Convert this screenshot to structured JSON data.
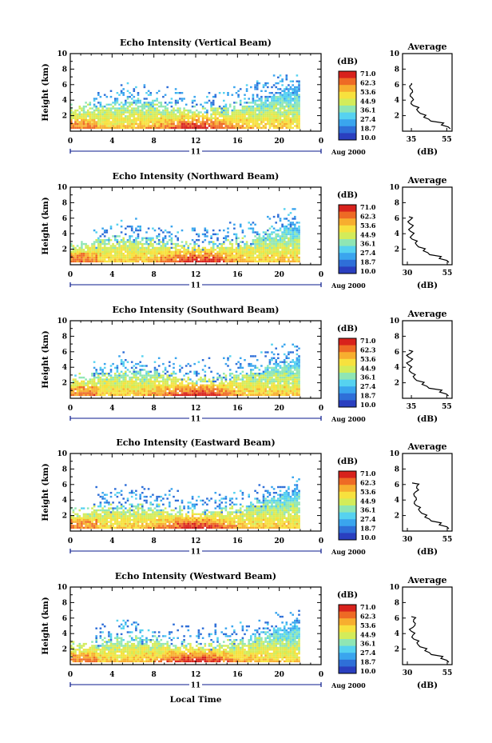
{
  "figure": {
    "bottom_xlabel": "Local Time",
    "date_label": "Aug 2000",
    "day_label": "11",
    "colorbar_unit": "(dB)",
    "colorbar_ticks": [
      "71.0",
      "62.3",
      "53.6",
      "44.9",
      "36.1",
      "27.4",
      "18.7",
      "10.0"
    ],
    "profile_title": "Average",
    "profile_xlabel": "(dB)",
    "colors": {
      "colormap": [
        "#2a3fbf",
        "#2f6fd8",
        "#3aa5ee",
        "#56d2f0",
        "#8fe6b4",
        "#d3ec5a",
        "#f7e13e",
        "#f7ae2f",
        "#ee6a25",
        "#d8221c"
      ],
      "frame": "#000000",
      "axis_tick_color": "#0a1a8c"
    }
  },
  "chart_data": [
    {
      "type": "heatmap",
      "title": "Echo Intensity (Vertical Beam)",
      "ylabel": "Height (km)",
      "xlim": [
        0,
        24
      ],
      "ylim": [
        0,
        10
      ],
      "xticks": [
        "0",
        "4",
        "8",
        "12",
        "16",
        "20",
        "0"
      ],
      "yticks": [
        "2",
        "4",
        "6",
        "8",
        "10"
      ],
      "clim": [
        10.0,
        71.0
      ],
      "data_end_hour": 21.8,
      "profile": {
        "xticks": [
          "35",
          "55"
        ],
        "xlim": [
          30,
          58
        ],
        "ylim": [
          0,
          10
        ],
        "heights": [
          0.3,
          0.8,
          1.3,
          1.8,
          2.3,
          2.8,
          3.3,
          3.8,
          4.3,
          4.8,
          5.3,
          5.8,
          6.2
        ],
        "values": [
          57,
          52,
          46,
          42,
          40,
          38,
          36,
          35,
          35.5,
          34.5,
          35.5,
          34,
          35
        ]
      }
    },
    {
      "type": "heatmap",
      "title": "Echo Intensity (Northward Beam)",
      "ylabel": "Height (km)",
      "xlim": [
        0,
        24
      ],
      "ylim": [
        0,
        10
      ],
      "xticks": [
        "0",
        "4",
        "8",
        "12",
        "16",
        "20",
        "0"
      ],
      "yticks": [
        "2",
        "4",
        "6",
        "8",
        "10"
      ],
      "clim": [
        10.0,
        71.0
      ],
      "data_end_hour": 21.8,
      "profile": {
        "xticks": [
          "30",
          "55"
        ],
        "xlim": [
          27,
          58
        ],
        "ylim": [
          0,
          10
        ],
        "heights": [
          0.3,
          0.8,
          1.3,
          1.8,
          2.3,
          2.8,
          3.3,
          3.8,
          4.3,
          4.8,
          5.3,
          5.8,
          6.2
        ],
        "values": [
          56,
          50,
          44,
          40,
          37,
          35,
          33,
          33,
          32,
          32.5,
          31.5,
          32,
          31
        ]
      }
    },
    {
      "type": "heatmap",
      "title": "Echo Intensity (Southward Beam)",
      "ylabel": "Height (km)",
      "xlim": [
        0,
        24
      ],
      "ylim": [
        0,
        10
      ],
      "xticks": [
        "0",
        "4",
        "8",
        "12",
        "16",
        "20",
        "0"
      ],
      "yticks": [
        "2",
        "4",
        "6",
        "8",
        "10"
      ],
      "clim": [
        10.0,
        71.0
      ],
      "data_end_hour": 21.8,
      "profile": {
        "xticks": [
          "35",
          "55"
        ],
        "xlim": [
          30,
          58
        ],
        "ylim": [
          0,
          10
        ],
        "heights": [
          0.3,
          0.8,
          1.3,
          1.8,
          2.3,
          2.8,
          3.3,
          3.8,
          4.3,
          4.8,
          5.3,
          5.8,
          6.2
        ],
        "values": [
          56,
          51,
          45,
          41,
          38,
          36,
          35,
          34,
          33.5,
          34.5,
          33.5,
          34.5,
          33.5
        ]
      }
    },
    {
      "type": "heatmap",
      "title": "Echo Intensity (Eastward Beam)",
      "ylabel": "Height (km)",
      "xlim": [
        0,
        24
      ],
      "ylim": [
        0,
        10
      ],
      "xticks": [
        "0",
        "4",
        "8",
        "12",
        "16",
        "20",
        "0"
      ],
      "yticks": [
        "2",
        "4",
        "6",
        "8",
        "10"
      ],
      "clim": [
        10.0,
        71.0
      ],
      "data_end_hour": 21.8,
      "profile": {
        "xticks": [
          "30",
          "55"
        ],
        "xlim": [
          27,
          58
        ],
        "ylim": [
          0,
          10
        ],
        "heights": [
          0.3,
          0.8,
          1.3,
          1.8,
          2.3,
          2.8,
          3.3,
          3.8,
          4.3,
          4.8,
          5.3,
          5.8,
          6.2
        ],
        "values": [
          56,
          50,
          45,
          41,
          39,
          37,
          35.5,
          34.5,
          35.5,
          34,
          37,
          36,
          33
        ]
      }
    },
    {
      "type": "heatmap",
      "title": "Echo Intensity (Westward Beam)",
      "ylabel": "Height (km)",
      "xlim": [
        0,
        24
      ],
      "ylim": [
        0,
        10
      ],
      "xticks": [
        "0",
        "4",
        "8",
        "12",
        "16",
        "20",
        "0"
      ],
      "yticks": [
        "2",
        "4",
        "6",
        "8",
        "10"
      ],
      "clim": [
        10.0,
        71.0
      ],
      "data_end_hour": 21.8,
      "profile": {
        "xticks": [
          "30",
          "55"
        ],
        "xlim": [
          27,
          58
        ],
        "ylim": [
          0,
          10
        ],
        "heights": [
          0.3,
          0.8,
          1.3,
          1.8,
          2.3,
          2.8,
          3.3,
          3.8,
          4.3,
          4.8,
          5.3,
          5.8,
          6.2
        ],
        "values": [
          56,
          51,
          45,
          41,
          38,
          36,
          34,
          33.5,
          32.5,
          33.5,
          35,
          34,
          32.5
        ]
      }
    }
  ]
}
